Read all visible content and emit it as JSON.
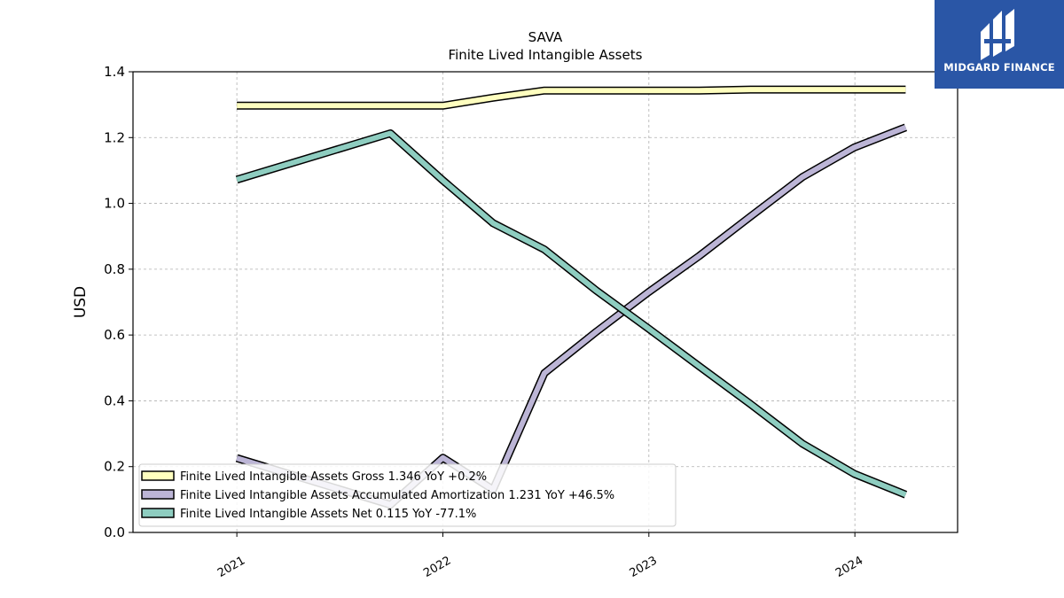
{
  "brand": {
    "name": "MIDGARD FINANCE",
    "bg_color": "#2a56a6"
  },
  "chart_data": {
    "type": "line",
    "title": "SAVA",
    "subtitle": "Finite Lived Intangible Assets",
    "ylabel": "USD",
    "xlabel": "",
    "x_ticks": [
      "2021",
      "2022",
      "2023",
      "2024"
    ],
    "ylim": [
      0.0,
      1.4
    ],
    "y_ticks": [
      "0.0",
      "0.2",
      "0.4",
      "0.6",
      "0.8",
      "1.0",
      "1.2",
      "1.4"
    ],
    "grid": true,
    "legend_position": "lower-left",
    "x": [
      "2021-01-01",
      "2021-09-30",
      "2022-01-01",
      "2022-03-31",
      "2022-06-30",
      "2022-09-30",
      "2022-12-31",
      "2023-03-31",
      "2023-06-30",
      "2023-09-30",
      "2023-12-31",
      "2024-03-31"
    ],
    "series": [
      {
        "name": "Finite Lived Intangible Assets Gross",
        "legend_label": "Finite Lived Intangible Assets Gross  1.346 YoY +0.2%",
        "color": "#ffffbf",
        "values": [
          1.297,
          1.297,
          1.297,
          1.321,
          1.343,
          1.343,
          1.343,
          1.343,
          1.346,
          1.346,
          1.346,
          1.346
        ]
      },
      {
        "name": "Finite Lived Intangible Assets Accumulated Amortization",
        "legend_label": "Finite Lived Intangible Assets Accumulated Amortization  1.231 YoY +46.5%",
        "color": "#bcb5d6",
        "values": [
          0.226,
          0.084,
          0.227,
          0.13,
          0.484,
          0.61,
          0.73,
          0.84,
          0.96,
          1.08,
          1.17,
          1.231
        ]
      },
      {
        "name": "Finite Lived Intangible Assets Net",
        "legend_label": "Finite Lived Intangible Assets Net  0.115 YoY -77.1%",
        "color": "#8ecdc0",
        "values": [
          1.072,
          1.213,
          1.07,
          0.94,
          0.86,
          0.735,
          0.62,
          0.505,
          0.39,
          0.27,
          0.178,
          0.115
        ]
      }
    ]
  }
}
